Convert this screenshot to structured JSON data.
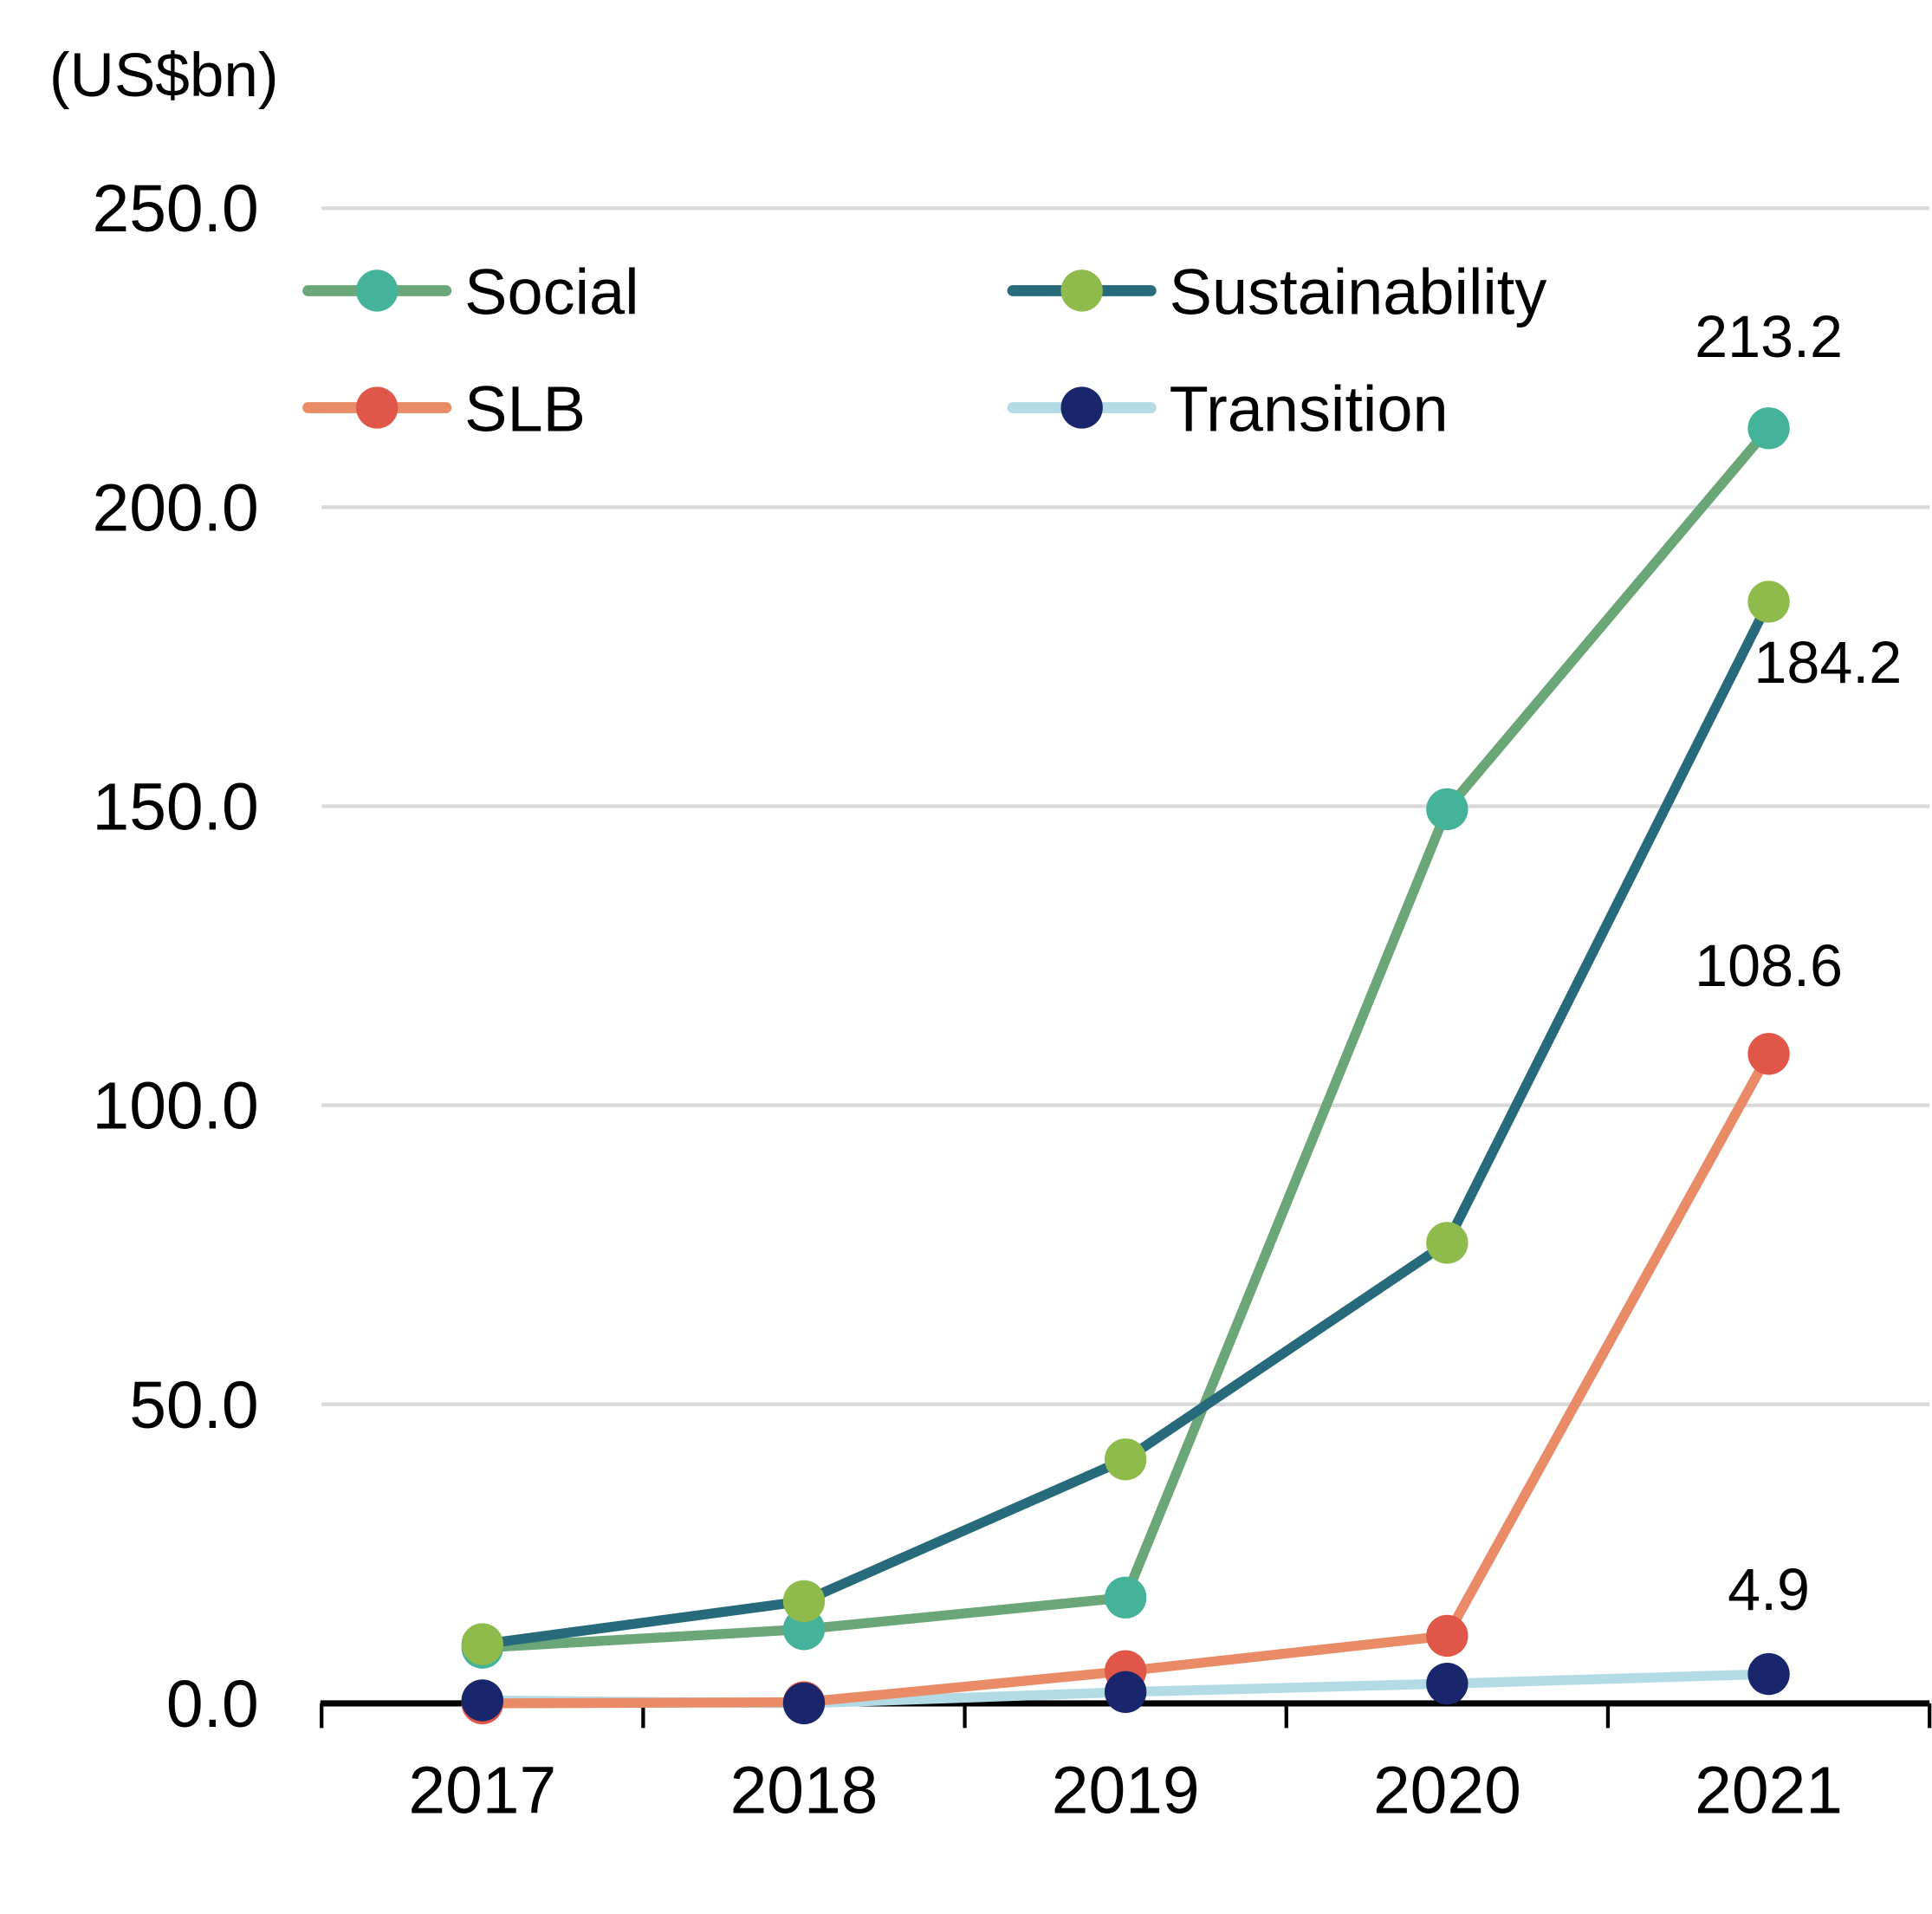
{
  "chart_data": {
    "type": "line",
    "title": "",
    "unit_label": "(US$bn)",
    "xlabel": "",
    "ylabel": "(US$bn)",
    "categories": [
      "2017",
      "2018",
      "2019",
      "2020",
      "2021"
    ],
    "ylim": [
      0,
      250
    ],
    "yticks": [
      "0.0",
      "50.0",
      "100.0",
      "150.0",
      "200.0",
      "250.0"
    ],
    "ytick_values": [
      0,
      50,
      100,
      150,
      200,
      250
    ],
    "grid": true,
    "legend_position": "top-left",
    "series": [
      {
        "name": "Social",
        "values": [
          9.3,
          12.4,
          17.7,
          149.5,
          213.2
        ],
        "line_color": "#6aa677",
        "marker_color": "#45b39a",
        "end_label": "213.2"
      },
      {
        "name": "Sustainability",
        "values": [
          9.9,
          17.1,
          40.8,
          77.0,
          184.2
        ],
        "line_color": "#276a7c",
        "marker_color": "#8fba4c",
        "end_label": "184.2"
      },
      {
        "name": "SLB",
        "values": [
          0.0,
          0.2,
          5.4,
          11.3,
          108.6
        ],
        "line_color": "#e88b66",
        "marker_color": "#e0574a",
        "end_label": "108.6"
      },
      {
        "name": "Transition",
        "values": [
          0.5,
          0.0,
          1.9,
          3.3,
          4.9
        ],
        "line_color": "#b3dbe6",
        "marker_color": "#1a266b",
        "end_label": "4.9"
      }
    ]
  }
}
